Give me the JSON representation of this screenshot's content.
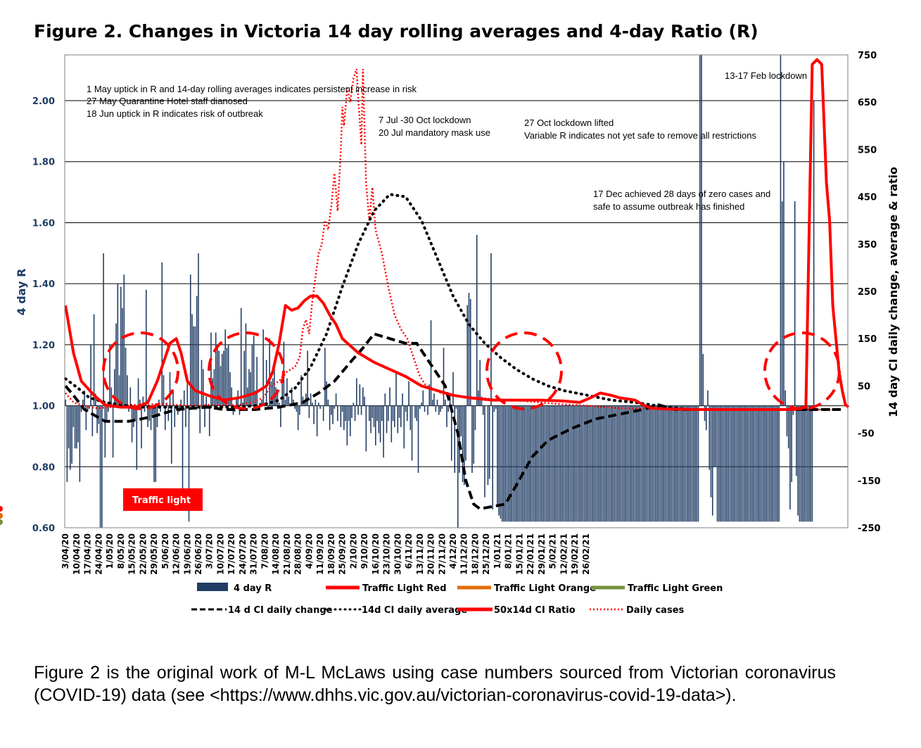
{
  "title": "Figure 2. Changes in Victoria 14 day rolling averages and 4-day Ratio (R)",
  "caption": "Figure 2 is the original work of M-L McLaws using case numbers sourced from Victorian coronavirus (COVID-19) data (see <https://www.dhhs.vic.gov.au/victorian-coronavirus-covid-19-data>).",
  "colors": {
    "bars": "#1f3c64",
    "red": "#ff0000",
    "orange": "#e36c0a",
    "green": "#76923c",
    "black": "#000000"
  },
  "chart_data": {
    "type": "bar",
    "ylabel": "4 day R",
    "y2label": "14 day CI daily change, average & ratio",
    "ylim": [
      0.6,
      2.15
    ],
    "y2lim": [
      -250,
      750
    ],
    "y_ticks": [
      "0.60",
      "0.80",
      "1.00",
      "1.20",
      "1.40",
      "1.60",
      "1.80",
      "2.00"
    ],
    "y2_ticks": [
      "-250",
      "-150",
      "-50",
      "50",
      "150",
      "250",
      "350",
      "450",
      "550",
      "650",
      "750"
    ],
    "x_ticks": [
      "3/04/20",
      "10/04/20",
      "17/04/20",
      "24/04/20",
      "1/05/20",
      "8/05/20",
      "15/05/20",
      "22/05/20",
      "29/05/20",
      "5/06/20",
      "12/06/20",
      "19/06/20",
      "26/06/20",
      "3/07/20",
      "10/07/20",
      "17/07/20",
      "24/07/20",
      "31/07/20",
      "7/08/20",
      "14/08/20",
      "21/08/20",
      "28/08/20",
      "4/09/20",
      "11/09/20",
      "18/09/20",
      "25/09/20",
      "2/10/20",
      "9/10/20",
      "16/10/20",
      "23/10/20",
      "30/10/20",
      "6/11/20",
      "13/11/20",
      "20/11/20",
      "27/11/20",
      "4/12/20",
      "11/12/20",
      "18/12/20",
      "25/12/20",
      "1/01/21",
      "8/01/21",
      "15/01/21",
      "22/01/21",
      "29/01/21",
      "5/02/21",
      "12/02/21",
      "19/02/21",
      "26/02/21"
    ],
    "grid": true,
    "legend_position": "bottom",
    "legend": [
      "4 day R",
      "Traffic Light Red",
      "Traffic Light Orange",
      "Traffic Light Green",
      "14 d CI daily change",
      "14d CI daily average",
      "50x14d CI Ratio",
      "Daily cases"
    ],
    "bar_values": [
      1.02,
      0.75,
      0.86,
      0.79,
      0.81,
      0.93,
      0.86,
      0.86,
      0.88,
      0.75,
      0.98,
      1.02,
      1.05,
      0.92,
      0.98,
      0.99,
      1.2,
      0.9,
      1.3,
      1.04,
      0.91,
      0.94,
      0.6,
      0.6,
      1.5,
      0.83,
      0.95,
      0.98,
      1.2,
      1.06,
      0.83,
      1.12,
      1.27,
      1.4,
      1.1,
      1.39,
      1.32,
      1.43,
      1.19,
      1.1,
      0.98,
      1.06,
      0.88,
      0.93,
      0.95,
      0.79,
      1.09,
      1.02,
      0.86,
      1.03,
      0.98,
      1.38,
      0.93,
      0.95,
      0.92,
      0.97,
      0.75,
      0.75,
      0.93,
      1.02,
      0.98,
      1.47,
      1.1,
      0.92,
      1.01,
      0.95,
      1.11,
      0.81,
      1.05,
      0.93,
      1.0,
      0.97,
      0.98,
      1.02,
      0.7,
      1.05,
      0.93,
      1.1,
      0.62,
      1.43,
      1.3,
      1.26,
      1.26,
      1.36,
      1.5,
      0.91,
      1.15,
      1.12,
      0.93,
      1.03,
      1.0,
      0.9,
      1.24,
      1.09,
      1.12,
      1.24,
      1.19,
      1.18,
      1.13,
      1.17,
      1.18,
      1.25,
      1.19,
      1.2,
      1.11,
      1.06,
      0.97,
      0.98,
      1.03,
      1.05,
      0.97,
      1.32,
      1.01,
      1.18,
      1.27,
      1.06,
      1.12,
      1.11,
      1.2,
      1.23,
      1.05,
      1.16,
      0.99,
      1.01,
      1.02,
      1.25,
      1.01,
      1.15,
      0.99,
      1.22,
      1.08,
      1.09,
      1.15,
      1.06,
      1.05,
      1.01,
      0.93,
      1.08,
      1.21,
      1.02,
      1.09,
      1.03,
      1.0,
      1.06,
      1.02,
      0.99,
      0.98,
      0.92,
      0.97,
      1.1,
      1.03,
      1.01,
      1.04,
      1.18,
      0.96,
      1.04,
      1.01,
      0.94,
      1.02,
      0.9,
      1.01,
      0.99,
      1.0,
      0.95,
      1.19,
      1.08,
      1.02,
      0.92,
      0.97,
      0.94,
      0.99,
      1.04,
      0.95,
      1.0,
      0.93,
      0.98,
      0.92,
      0.95,
      0.87,
      0.95,
      0.9,
      0.96,
      1.01,
      0.95,
      1.09,
      0.97,
      1.07,
      0.97,
      1.06,
      1.03,
      0.85,
      1.0,
      0.95,
      0.91,
      0.96,
      0.93,
      0.87,
      0.95,
      0.91,
      0.88,
      0.95,
      0.83,
      1.04,
      0.91,
      0.95,
      1.06,
      0.88,
      0.95,
      0.93,
      1.11,
      0.91,
      0.96,
      0.93,
      1.04,
      0.86,
      0.98,
      0.95,
      1.08,
      0.92,
      0.82,
      1.0,
      0.96,
      0.95,
      0.78,
      0.99,
      1.01,
      1.05,
      0.98,
      1.0,
      0.97,
      1.07,
      1.28,
      1.02,
      1.04,
      0.98,
      1.02,
      0.97,
      0.98,
      0.99,
      1.19,
      1.02,
      0.93,
      0.98,
      1.04,
      0.82,
      1.11,
      0.78,
      0.99,
      0.6,
      0.78,
      0.9,
      0.75,
      0.74,
      0.82,
      1.33,
      1.37,
      1.35,
      0.78,
      0.81,
      0.92,
      1.56,
      1.05,
      1.15,
      1.03,
      0.97,
      0.7,
      1.0,
      0.74,
      0.76,
      1.5,
      0.66,
      0.98,
      0.99,
      0.67,
      0.64,
      0.63,
      0.62,
      0.62,
      0.62,
      0.62,
      0.62,
      0.62,
      0.62,
      0.62,
      0.62,
      0.62,
      0.62,
      0.62,
      0.62,
      0.62,
      0.62,
      0.62,
      0.62,
      0.62,
      0.62,
      0.62,
      0.62,
      0.62,
      0.62,
      0.62,
      0.62,
      0.62,
      0.62,
      0.62,
      0.62,
      0.62,
      0.62,
      0.62,
      0.62,
      0.62,
      0.62,
      0.62,
      0.62,
      0.62,
      0.62,
      0.62,
      0.62,
      0.62,
      0.62,
      0.62,
      0.62,
      0.62,
      0.62,
      0.62,
      0.62,
      0.62,
      0.62,
      0.62,
      0.62,
      0.62,
      0.62,
      0.62,
      0.62,
      0.62,
      0.62,
      0.62,
      0.62,
      0.62,
      0.62,
      0.62,
      0.62,
      0.62,
      0.62,
      0.62,
      0.62,
      0.62,
      0.62,
      0.62,
      0.62,
      0.62,
      0.62,
      0.62,
      0.62,
      0.62,
      0.62,
      0.62,
      0.62,
      0.62,
      0.62,
      0.62,
      0.62,
      0.62,
      0.62,
      0.62,
      0.62,
      0.62,
      0.62,
      0.62,
      0.62,
      0.62,
      0.62,
      0.62,
      0.62,
      0.62,
      0.62,
      0.62,
      0.62,
      0.62,
      0.62,
      0.62,
      0.62,
      0.62,
      0.62,
      0.62,
      0.62,
      0.62,
      0.62,
      0.62,
      0.62,
      0.62,
      0.62,
      0.62,
      0.62,
      0.62,
      0.62,
      0.62,
      0.62,
      0.62,
      0.62,
      0.62,
      0.62,
      2.15,
      2.15,
      1.17,
      0.95,
      0.92,
      1.05,
      0.79,
      0.7,
      0.64,
      0.8,
      0.8,
      0.62,
      0.62,
      0.62,
      0.62,
      0.62,
      0.62,
      0.62,
      0.62,
      0.62,
      0.62,
      0.62,
      0.62,
      0.62,
      0.62,
      0.62,
      0.62,
      0.62,
      0.62,
      0.62,
      0.62,
      0.62,
      0.62,
      0.62,
      0.62,
      0.62,
      0.62,
      0.62,
      0.62,
      0.62,
      0.62,
      0.62,
      0.62,
      0.62,
      0.62,
      0.62,
      0.62,
      0.62,
      0.62,
      0.62,
      0.62,
      2.15,
      1.67,
      1.8,
      1.05,
      0.9,
      0.86,
      0.66,
      0.75,
      0.97,
      1.67,
      0.77,
      0.64,
      0.62,
      0.62,
      0.62,
      0.62,
      0.62,
      0.62,
      0.62,
      0.62,
      0.62,
      2.0
    ],
    "ci_daily_change": [
      [
        0,
        50
      ],
      [
        5,
        30
      ],
      [
        12,
        0
      ],
      [
        25,
        -25
      ],
      [
        40,
        -25
      ],
      [
        55,
        -15
      ],
      [
        70,
        0
      ],
      [
        90,
        5
      ],
      [
        100,
        0
      ],
      [
        120,
        0
      ],
      [
        135,
        5
      ],
      [
        150,
        15
      ],
      [
        160,
        35
      ],
      [
        170,
        60
      ],
      [
        180,
        100
      ],
      [
        188,
        130
      ],
      [
        195,
        160
      ],
      [
        205,
        150
      ],
      [
        215,
        140
      ],
      [
        222,
        140
      ],
      [
        230,
        100
      ],
      [
        240,
        50
      ],
      [
        248,
        -50
      ],
      [
        253,
        -150
      ],
      [
        258,
        -200
      ],
      [
        262,
        -210
      ],
      [
        270,
        -205
      ],
      [
        278,
        -200
      ],
      [
        285,
        -160
      ],
      [
        295,
        -100
      ],
      [
        305,
        -65
      ],
      [
        320,
        -40
      ],
      [
        335,
        -20
      ],
      [
        350,
        -10
      ],
      [
        365,
        0
      ],
      [
        375,
        10
      ],
      [
        380,
        5
      ],
      [
        385,
        0
      ],
      [
        400,
        0
      ],
      [
        420,
        0
      ],
      [
        445,
        0
      ],
      [
        470,
        0
      ],
      [
        480,
        0
      ],
      [
        490,
        0
      ]
    ],
    "ci_daily_average": [
      [
        0,
        65
      ],
      [
        8,
        45
      ],
      [
        15,
        25
      ],
      [
        25,
        15
      ],
      [
        35,
        10
      ],
      [
        45,
        5
      ],
      [
        55,
        5
      ],
      [
        65,
        5
      ],
      [
        80,
        5
      ],
      [
        95,
        5
      ],
      [
        110,
        5
      ],
      [
        125,
        10
      ],
      [
        135,
        20
      ],
      [
        145,
        45
      ],
      [
        155,
        90
      ],
      [
        165,
        160
      ],
      [
        175,
        260
      ],
      [
        185,
        350
      ],
      [
        195,
        420
      ],
      [
        205,
        455
      ],
      [
        215,
        450
      ],
      [
        225,
        400
      ],
      [
        235,
        320
      ],
      [
        245,
        240
      ],
      [
        255,
        180
      ],
      [
        265,
        140
      ],
      [
        275,
        110
      ],
      [
        285,
        85
      ],
      [
        295,
        65
      ],
      [
        305,
        50
      ],
      [
        315,
        40
      ],
      [
        330,
        30
      ],
      [
        345,
        20
      ],
      [
        360,
        15
      ],
      [
        370,
        10
      ],
      [
        380,
        5
      ],
      [
        395,
        0
      ],
      [
        420,
        0
      ],
      [
        450,
        0
      ],
      [
        470,
        0
      ],
      [
        480,
        0
      ],
      [
        490,
        0
      ]
    ],
    "ci_ratio_50x": [
      [
        0,
        220
      ],
      [
        5,
        120
      ],
      [
        10,
        60
      ],
      [
        18,
        30
      ],
      [
        25,
        10
      ],
      [
        35,
        5
      ],
      [
        45,
        5
      ],
      [
        52,
        15
      ],
      [
        58,
        60
      ],
      [
        62,
        100
      ],
      [
        66,
        140
      ],
      [
        70,
        150
      ],
      [
        73,
        120
      ],
      [
        77,
        60
      ],
      [
        82,
        40
      ],
      [
        90,
        30
      ],
      [
        100,
        20
      ],
      [
        110,
        25
      ],
      [
        120,
        35
      ],
      [
        127,
        50
      ],
      [
        131,
        80
      ],
      [
        135,
        140
      ],
      [
        139,
        220
      ],
      [
        143,
        210
      ],
      [
        147,
        215
      ],
      [
        151,
        230
      ],
      [
        155,
        240
      ],
      [
        159,
        240
      ],
      [
        163,
        225
      ],
      [
        167,
        200
      ],
      [
        171,
        180
      ],
      [
        175,
        150
      ],
      [
        185,
        120
      ],
      [
        195,
        100
      ],
      [
        205,
        85
      ],
      [
        215,
        70
      ],
      [
        225,
        50
      ],
      [
        235,
        40
      ],
      [
        245,
        30
      ],
      [
        255,
        25
      ],
      [
        270,
        20
      ],
      [
        285,
        20
      ],
      [
        300,
        20
      ],
      [
        315,
        18
      ],
      [
        325,
        15
      ],
      [
        332,
        25
      ],
      [
        338,
        35
      ],
      [
        345,
        30
      ],
      [
        350,
        25
      ],
      [
        360,
        20
      ],
      [
        365,
        10
      ],
      [
        370,
        3
      ],
      [
        380,
        1
      ],
      [
        400,
        0
      ],
      [
        420,
        0
      ],
      [
        440,
        0
      ],
      [
        460,
        0
      ],
      [
        468,
        5
      ],
      [
        472,
        730
      ],
      [
        475,
        740
      ],
      [
        478,
        730
      ],
      [
        481,
        480
      ],
      [
        483,
        400
      ],
      [
        485,
        220
      ],
      [
        487,
        150
      ],
      [
        489,
        80
      ],
      [
        491,
        40
      ],
      [
        493,
        10
      ],
      [
        495,
        5
      ]
    ],
    "daily_cases": [
      [
        0,
        35
      ],
      [
        5,
        15
      ],
      [
        10,
        10
      ],
      [
        15,
        5
      ],
      [
        20,
        3
      ],
      [
        30,
        5
      ],
      [
        40,
        10
      ],
      [
        50,
        10
      ],
      [
        60,
        12
      ],
      [
        70,
        10
      ],
      [
        80,
        8
      ],
      [
        90,
        10
      ],
      [
        100,
        8
      ],
      [
        110,
        10
      ],
      [
        118,
        15
      ],
      [
        125,
        25
      ],
      [
        130,
        50
      ],
      [
        135,
        60
      ],
      [
        140,
        80
      ],
      [
        145,
        90
      ],
      [
        148,
        110
      ],
      [
        150,
        170
      ],
      [
        152,
        190
      ],
      [
        154,
        160
      ],
      [
        156,
        230
      ],
      [
        158,
        280
      ],
      [
        160,
        330
      ],
      [
        162,
        350
      ],
      [
        164,
        400
      ],
      [
        166,
        380
      ],
      [
        168,
        430
      ],
      [
        170,
        500
      ],
      [
        172,
        420
      ],
      [
        174,
        550
      ],
      [
        175,
        640
      ],
      [
        176,
        600
      ],
      [
        178,
        680
      ],
      [
        180,
        650
      ],
      [
        182,
        700
      ],
      [
        184,
        720
      ],
      [
        185,
        660
      ],
      [
        187,
        560
      ],
      [
        188,
        720
      ],
      [
        190,
        480
      ],
      [
        192,
        400
      ],
      [
        194,
        470
      ],
      [
        196,
        380
      ],
      [
        200,
        330
      ],
      [
        204,
        260
      ],
      [
        208,
        200
      ],
      [
        212,
        170
      ],
      [
        216,
        150
      ],
      [
        220,
        110
      ],
      [
        224,
        70
      ],
      [
        228,
        50
      ],
      [
        232,
        45
      ],
      [
        240,
        30
      ],
      [
        250,
        28
      ],
      [
        260,
        25
      ],
      [
        270,
        22
      ],
      [
        280,
        20
      ],
      [
        290,
        18
      ],
      [
        300,
        15
      ],
      [
        310,
        12
      ],
      [
        320,
        10
      ],
      [
        330,
        8
      ],
      [
        340,
        5
      ],
      [
        350,
        3
      ],
      [
        365,
        2
      ],
      [
        380,
        1
      ],
      [
        400,
        0
      ],
      [
        440,
        0
      ],
      [
        470,
        0
      ],
      [
        480,
        0
      ],
      [
        490,
        0
      ]
    ],
    "traffic_red": [
      [
        0,
        28
      ],
      [
        150,
        331
      ]
    ],
    "traffic_orange": [
      [
        30,
        48
      ],
      [
        80,
        110
      ],
      [
        334,
        343
      ]
    ],
    "traffic_green": [
      [
        345,
        490
      ]
    ],
    "annotations": [
      "1 May uptick in R and 14-day rolling averages indicates persistent increase in risk",
      "27 May Quarantine Hotel staff dianosed",
      "18 Jun uptick in R indicates risk of outbreak",
      "7 Jul -30 Oct lockdown",
      "20 Jul mandatory mask use",
      "27 Oct lockdown lifted",
      "Variable  R indicates not yet safe to remove all restrictions",
      "17 Dec achieved 28 days of zero cases and",
      "safe to assume  outbreak has finished",
      "13-17 Feb lockdown",
      "Traffic light"
    ]
  }
}
